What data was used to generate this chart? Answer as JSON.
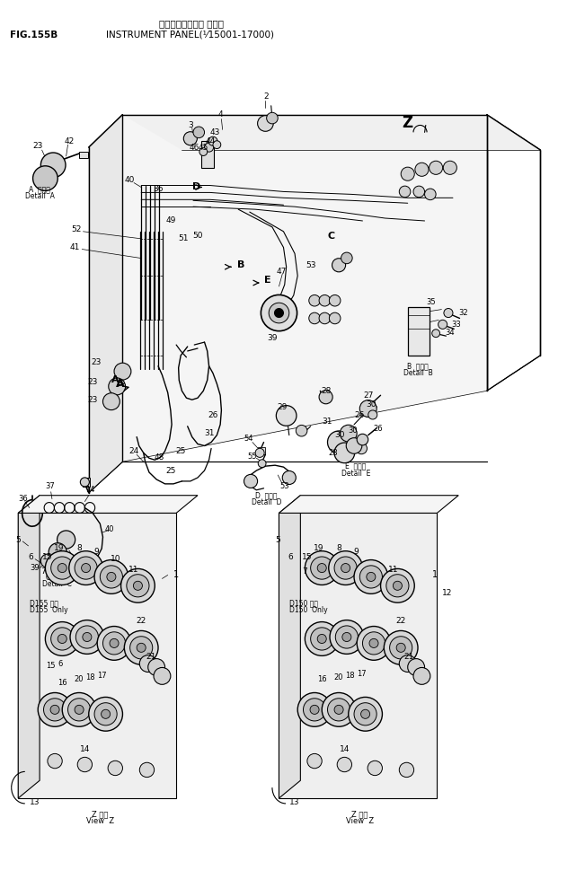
{
  "title_japanese": "インストルメント パネル",
  "title_english": "INSTRUMENT PANEL(⅟15001-17000)",
  "fig_label": "FIG.155B",
  "bg_color": "#ffffff",
  "line_color": "#000000",
  "fig_width": 6.31,
  "fig_height": 9.89,
  "dpi": 100
}
